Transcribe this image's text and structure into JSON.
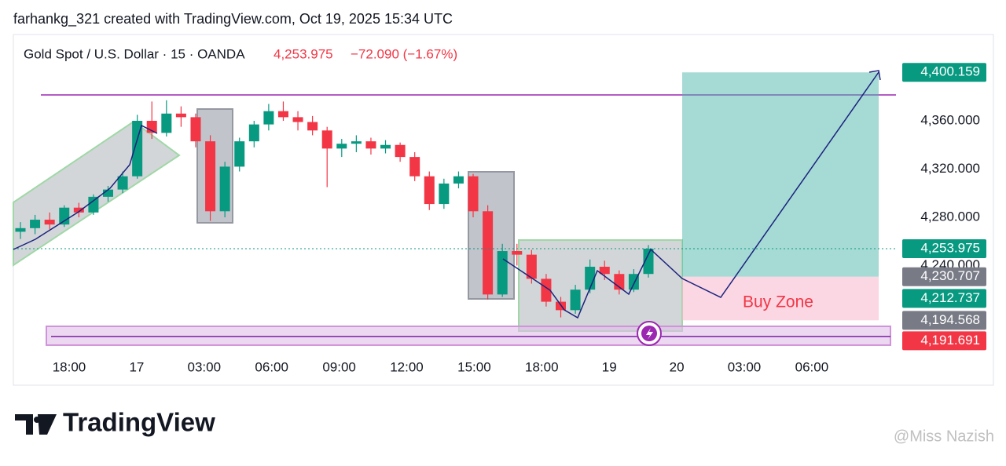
{
  "chart_data": {
    "type": "candlestick",
    "header": "farhankg_321 created with TradingView.com, Oct 19, 2025 15:34 UTC",
    "symbol": "Gold Spot / U.S. Dollar · 15 · OANDA",
    "last_price": "4,253.975",
    "change": "−72.090 (−1.67%)",
    "brand": "TradingView",
    "watermark": "@Miss Nazish",
    "zone_label": "Buy Zone",
    "x_labels": [
      "18:00",
      "17",
      "03:00",
      "06:00",
      "09:00",
      "12:00",
      "15:00",
      "18:00",
      "19",
      "20",
      "03:00",
      "06:00"
    ],
    "ylim": [
      4164.2,
      4430.9
    ],
    "yticks": [
      {
        "value": 4240,
        "label": "4,240.000"
      },
      {
        "value": 4280,
        "label": "4,280.000"
      },
      {
        "value": 4320,
        "label": "4,320.000"
      },
      {
        "value": 4360,
        "label": "4,360.000"
      }
    ],
    "up_color": "#089981",
    "down_color": "#f23645",
    "open": [
      4268,
      4271,
      4278,
      4274,
      4288,
      4284,
      4297,
      4303,
      4314,
      4360,
      4350,
      4366,
      4363,
      4343,
      4285,
      4322,
      4343,
      4357,
      4368,
      4363,
      4359,
      4352,
      4337,
      4341,
      4343,
      4337,
      4340,
      4330,
      4314,
      4291,
      4308,
      4314,
      4285,
      4216,
      4252,
      4249,
      4229,
      4210,
      4203,
      4220,
      4239,
      4233,
      4220,
      4233
    ],
    "high": [
      4276,
      4282,
      4284,
      4290,
      4292,
      4299,
      4306,
      4318,
      4365,
      4376,
      4377,
      4372,
      4366,
      4348,
      4326,
      4346,
      4360,
      4374,
      4376,
      4368,
      4364,
      4355,
      4345,
      4348,
      4346,
      4344,
      4342,
      4334,
      4318,
      4312,
      4318,
      4316,
      4290,
      4258,
      4258,
      4253,
      4233,
      4214,
      4224,
      4245,
      4244,
      4236,
      4237,
      4257
    ],
    "low": [
      4262,
      4266,
      4270,
      4272,
      4280,
      4282,
      4293,
      4300,
      4312,
      4345,
      4347,
      4355,
      4338,
      4277,
      4280,
      4318,
      4338,
      4352,
      4360,
      4352,
      4348,
      4305,
      4330,
      4334,
      4332,
      4333,
      4326,
      4310,
      4286,
      4287,
      4304,
      4280,
      4212,
      4214,
      4240,
      4225,
      4206,
      4197,
      4200,
      4217,
      4228,
      4216,
      4218,
      4230
    ],
    "close": [
      4271,
      4278,
      4274,
      4288,
      4284,
      4297,
      4303,
      4314,
      4360,
      4350,
      4366,
      4363,
      4343,
      4285,
      4322,
      4343,
      4357,
      4368,
      4363,
      4359,
      4352,
      4337,
      4341,
      4343,
      4337,
      4340,
      4330,
      4314,
      4291,
      4308,
      4314,
      4285,
      4216,
      4252,
      4249,
      4229,
      4210,
      4203,
      4220,
      4239,
      4233,
      4220,
      4233,
      4253.975
    ],
    "resistance_line": 4381.5,
    "support_line": 4181.2,
    "support_zone": [
      4174,
      4189.6
    ],
    "target": 4400.159,
    "entry": 4230.707,
    "stop": 4194.568,
    "price_labels": [
      {
        "value": 4400.159,
        "label": "4,400.159",
        "color": "#089981"
      },
      {
        "value": 4253.975,
        "label": "4,253.975",
        "color": "#089981"
      },
      {
        "value": 4230.707,
        "label": "4,230.707",
        "color": "#787b86"
      },
      {
        "value": 4212.737,
        "label": "4,212.737",
        "color": "#089981"
      },
      {
        "value": 4194.568,
        "label": "4,194.568",
        "color": "#787b86"
      },
      {
        "value": 4191.691,
        "label": "4,191.691",
        "color": "#f23645"
      }
    ]
  }
}
